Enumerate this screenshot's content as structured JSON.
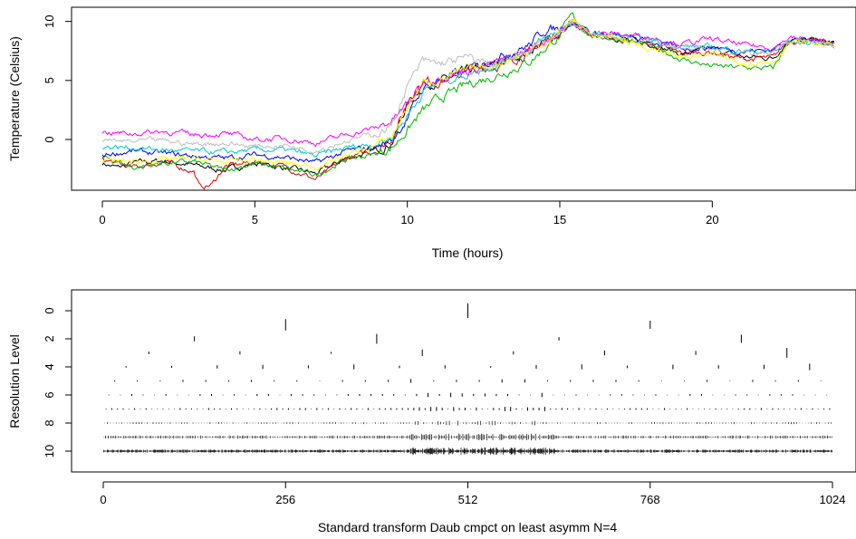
{
  "chart_data": [
    {
      "type": "line",
      "title": "",
      "xlabel": "Time (hours)",
      "ylabel": "Temperature (Celsius)",
      "xlim": [
        0,
        24
      ],
      "ylim": [
        -4.3,
        11.2
      ],
      "xticks": [
        "0",
        "5",
        "10",
        "15",
        "20"
      ],
      "yticks": [
        "0",
        "5",
        "10"
      ],
      "grid": false,
      "legend": "none",
      "series": [
        {
          "color": "#000000",
          "x": [
            0,
            0.5,
            1,
            2,
            3,
            4,
            5,
            6,
            7,
            8,
            9,
            9.5,
            10,
            10.5,
            11,
            12,
            13,
            14,
            15,
            15.4,
            16,
            17,
            18,
            19,
            20,
            21,
            22,
            22.5,
            23,
            24
          ],
          "y": [
            -2.0,
            -2.4,
            -2.0,
            -1.8,
            -2.2,
            -2.6,
            -2.0,
            -2.4,
            -2.9,
            -1.6,
            -0.9,
            -0.2,
            3.0,
            4.8,
            4.8,
            5.8,
            6.4,
            7.5,
            9.0,
            9.8,
            8.9,
            8.6,
            8.1,
            7.2,
            7.7,
            7.0,
            6.9,
            8.4,
            8.4,
            8.2
          ]
        },
        {
          "color": "#df0000",
          "x": [
            0,
            1,
            2,
            3,
            3.2,
            3.6,
            4,
            5,
            6,
            7,
            8,
            9,
            9.5,
            10,
            10.5,
            11,
            12,
            13,
            14,
            15,
            15.4,
            16,
            17,
            18,
            19,
            20,
            21,
            22,
            22.5,
            23,
            24
          ],
          "y": [
            -1.7,
            -2.4,
            -1.9,
            -2.7,
            -4.1,
            -3.8,
            -2.3,
            -1.9,
            -2.3,
            -3.4,
            -1.6,
            -0.9,
            0.1,
            3.1,
            5.0,
            4.9,
            5.8,
            6.3,
            7.4,
            9.1,
            9.9,
            8.9,
            8.5,
            8.0,
            7.3,
            7.4,
            6.8,
            6.9,
            8.4,
            8.4,
            8.1
          ]
        },
        {
          "color": "#00b300",
          "x": [
            0,
            0.5,
            1,
            2,
            3,
            4,
            5,
            6,
            7,
            8,
            9,
            9.5,
            10,
            10.5,
            11,
            12,
            13,
            14,
            15,
            15.4,
            16,
            17,
            18,
            19,
            20,
            21,
            22,
            22.5,
            23,
            24
          ],
          "y": [
            -1.6,
            -1.8,
            -2.4,
            -2.0,
            -1.9,
            -2.6,
            -2.0,
            -2.5,
            -3.0,
            -1.7,
            -1.2,
            -0.7,
            0.8,
            2.4,
            3.4,
            4.7,
            5.5,
            6.6,
            8.8,
            10.4,
            8.8,
            8.5,
            7.9,
            6.8,
            6.2,
            6.1,
            6.0,
            8.3,
            8.3,
            8.0
          ]
        },
        {
          "color": "#0000ee",
          "x": [
            0,
            1,
            2,
            3,
            4,
            5,
            6,
            7,
            8,
            9,
            9.5,
            10,
            10.5,
            11,
            12,
            13,
            14,
            14.5,
            15,
            15.4,
            16,
            17,
            18,
            19,
            20,
            21,
            22,
            22.5,
            23,
            24
          ],
          "y": [
            -1.3,
            -1.0,
            -1.2,
            -1.4,
            -1.6,
            -1.3,
            -1.5,
            -2.0,
            -1.0,
            -0.6,
            0.0,
            1.8,
            4.3,
            5.0,
            5.9,
            7.0,
            8.0,
            9.3,
            9.4,
            10.1,
            9.0,
            8.7,
            8.3,
            7.7,
            7.8,
            7.5,
            7.6,
            8.5,
            8.4,
            8.2
          ]
        },
        {
          "color": "#00cccc",
          "x": [
            0,
            1,
            2,
            3,
            4,
            5,
            6,
            7,
            8,
            9,
            9.5,
            10,
            10.5,
            11,
            12,
            13,
            14,
            15,
            15.4,
            16,
            17,
            18,
            19,
            20,
            21,
            22,
            22.5,
            23,
            24
          ],
          "y": [
            -0.6,
            -0.7,
            -0.9,
            -1.0,
            -1.1,
            -0.9,
            -0.9,
            -1.4,
            -0.7,
            -0.3,
            0.2,
            2.0,
            4.0,
            4.8,
            5.6,
            6.5,
            7.6,
            9.2,
            10.0,
            9.0,
            8.8,
            8.4,
            7.9,
            7.8,
            7.5,
            7.4,
            8.3,
            8.2,
            8.0
          ]
        },
        {
          "color": "#ff00ff",
          "x": [
            0,
            1,
            2,
            3,
            4,
            5,
            6,
            7,
            8,
            9,
            9.5,
            10,
            10.5,
            11,
            12,
            13,
            14,
            15,
            15.4,
            16,
            17,
            18,
            19,
            20,
            21,
            22,
            22.5,
            23,
            24
          ],
          "y": [
            0.6,
            0.5,
            0.7,
            0.4,
            0.5,
            0.0,
            0.1,
            -0.3,
            0.4,
            1.0,
            1.6,
            3.0,
            4.8,
            5.3,
            5.9,
            6.5,
            7.6,
            9.2,
            9.9,
            9.1,
            8.9,
            8.7,
            8.1,
            8.5,
            8.0,
            7.8,
            8.6,
            8.5,
            8.1
          ]
        },
        {
          "color": "#ffff00",
          "x": [
            0,
            1,
            2,
            3,
            4,
            5,
            6,
            7,
            8,
            9,
            9.5,
            10,
            10.5,
            11,
            12,
            13,
            14,
            15,
            15.4,
            16,
            17,
            18,
            19,
            20,
            21,
            22,
            22.5,
            23,
            24
          ],
          "y": [
            -1.8,
            -1.9,
            -1.7,
            -1.6,
            -1.9,
            -1.7,
            -2.0,
            -2.3,
            -1.3,
            -0.5,
            0.3,
            2.8,
            4.7,
            5.1,
            5.8,
            6.5,
            7.5,
            9.0,
            10.2,
            8.9,
            8.5,
            7.7,
            7.0,
            7.2,
            6.5,
            6.6,
            8.2,
            8.2,
            8.0
          ]
        },
        {
          "color": "#bebebe",
          "x": [
            0,
            1,
            2,
            3,
            4,
            5,
            6,
            7,
            8,
            9,
            9.5,
            10,
            10.5,
            11,
            12,
            13,
            14,
            15,
            15.4,
            16,
            17,
            18,
            19,
            20,
            21,
            22,
            22.5,
            23,
            24
          ],
          "y": [
            -0.1,
            -0.2,
            -0.1,
            -0.4,
            -0.3,
            -0.6,
            -0.5,
            -0.9,
            -0.1,
            0.5,
            1.2,
            4.5,
            6.6,
            6.4,
            6.9,
            6.2,
            7.6,
            9.0,
            9.6,
            9.0,
            8.6,
            8.2,
            7.8,
            7.6,
            7.3,
            7.2,
            8.4,
            8.3,
            8.1
          ]
        }
      ]
    },
    {
      "type": "scatter",
      "title": "",
      "xlabel": "Standard transform Daub cmpct on least asymm N=4",
      "ylabel": "Resolution Level",
      "xlim": [
        0,
        1024
      ],
      "ylim": [
        0,
        10
      ],
      "y_reversed": true,
      "xticks": [
        "0",
        "256",
        "512",
        "768",
        "1024"
      ],
      "yticks": [
        "0",
        "2",
        "4",
        "6",
        "8",
        "10"
      ],
      "grid": false,
      "legend": "none",
      "levels": [
        {
          "level": 0,
          "coefficients": [
            -0.9
          ]
        },
        {
          "level": 1,
          "coefficients": [
            0.7,
            0.5
          ]
        },
        {
          "level": 2,
          "coefficients": [
            0.3,
            -0.6,
            0.2,
            -0.5
          ]
        },
        {
          "level": 3,
          "coefficients": [
            0.15,
            -0.2,
            0.12,
            0.4,
            0.2,
            -0.3,
            0.25,
            -0.6
          ]
        },
        {
          "level": 4,
          "coefficients": [
            0.1,
            -0.12,
            0.2,
            -0.25,
            0.18,
            0.3,
            -0.15,
            0.2,
            -0.1,
            0.22,
            -0.3,
            0.15,
            0.28,
            -0.2,
            0.25,
            0.4
          ]
        }
      ]
    }
  ]
}
